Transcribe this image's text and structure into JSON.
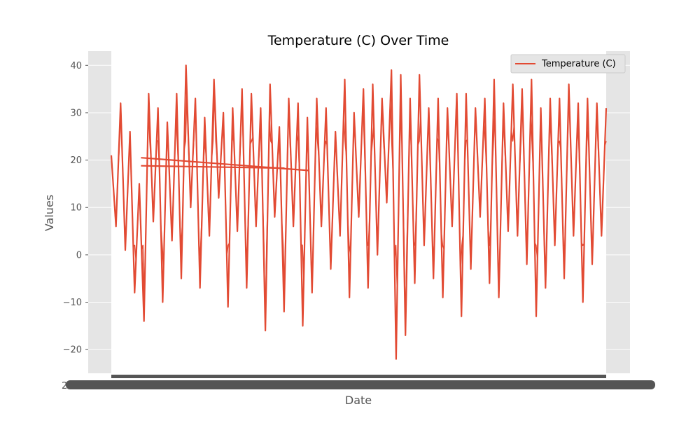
{
  "chart_data": {
    "type": "line",
    "title": "Temperature (C) Over Time",
    "xlabel": "Date",
    "ylabel": "Values",
    "ylim": [
      -25,
      43
    ],
    "yticks": [
      -20,
      -10,
      0,
      10,
      20,
      30,
      40
    ],
    "ytick_labels": [
      "−20",
      "−10",
      "0",
      "10",
      "20",
      "30",
      "40"
    ],
    "x_tick_labels_note": "x-axis tick labels overlap into an unreadable solid band; only a leading '2' is legible",
    "x_tick_first_char": "2",
    "grid": true,
    "legend_position": "top-right",
    "series": [
      {
        "name": "Temperature (C)",
        "color": "#E24A33",
        "approx_range": [
          -22,
          40
        ],
        "approx_center": 12,
        "values": [
          21,
          6,
          32,
          1,
          26,
          -8,
          15,
          -14,
          34,
          7,
          31,
          -10,
          28,
          3,
          34,
          -5,
          40,
          10,
          33,
          -7,
          29,
          4,
          37,
          12,
          30,
          -11,
          31,
          5,
          35,
          -7,
          34,
          6,
          31,
          -16,
          36,
          8,
          27,
          -12,
          33,
          6,
          32,
          -15,
          29,
          -8,
          33,
          6,
          31,
          -3,
          26,
          4,
          37,
          -9,
          30,
          8,
          35,
          -7,
          36,
          0,
          33,
          11,
          39,
          -22,
          38,
          -17,
          33,
          -6,
          38,
          2,
          31,
          -5,
          33,
          -9,
          31,
          6,
          34,
          -13,
          34,
          -3,
          31,
          8,
          33,
          -6,
          37,
          -9,
          32,
          5,
          36,
          4,
          35,
          -2,
          37,
          -13,
          31,
          -7,
          33,
          2,
          33,
          -5,
          36,
          4,
          32,
          -10,
          33,
          -2,
          32,
          4,
          31
        ]
      }
    ],
    "overlay_lines": [
      {
        "from": [
          0.06,
          20.5
        ],
        "to": [
          0.4,
          17.8
        ]
      },
      {
        "from": [
          0.06,
          18.8
        ],
        "to": [
          0.35,
          18.3
        ]
      }
    ]
  }
}
